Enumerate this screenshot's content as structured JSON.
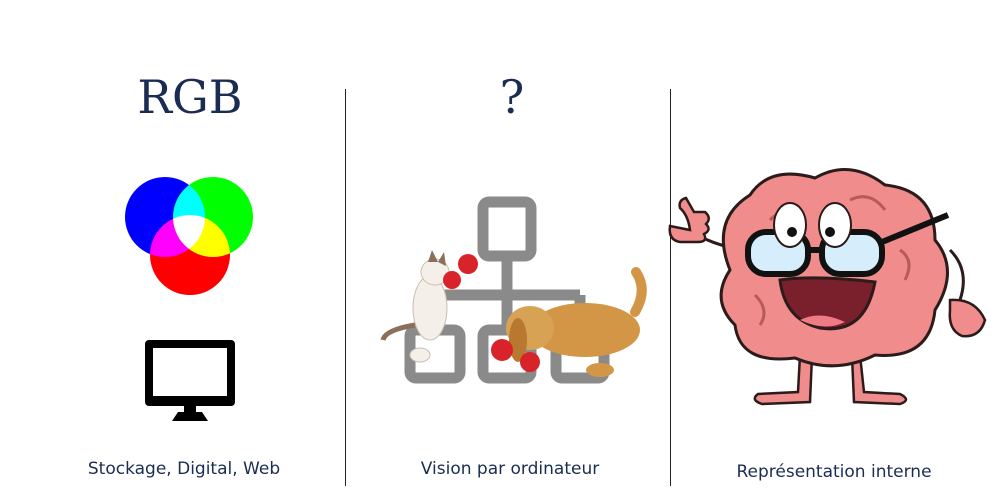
{
  "columns": [
    {
      "title": "RGB",
      "caption": "Stockage, Digital, Web"
    },
    {
      "title": "?",
      "caption": "Vision par ordinateur"
    },
    {
      "title": "",
      "caption": "Représentation interne"
    }
  ],
  "colors": {
    "title_text": "#1b2c52",
    "red": "#ff0000",
    "green": "#00ff00",
    "blue": "#0000ff",
    "network_gray": "#8a8a8a",
    "brain_pink": "#f08c8c"
  },
  "icons": [
    "rgb-venn-icon",
    "monitor-icon",
    "network-diagram-icon",
    "boxing-cat-icon",
    "boxing-dog-icon",
    "brain-character-icon"
  ]
}
